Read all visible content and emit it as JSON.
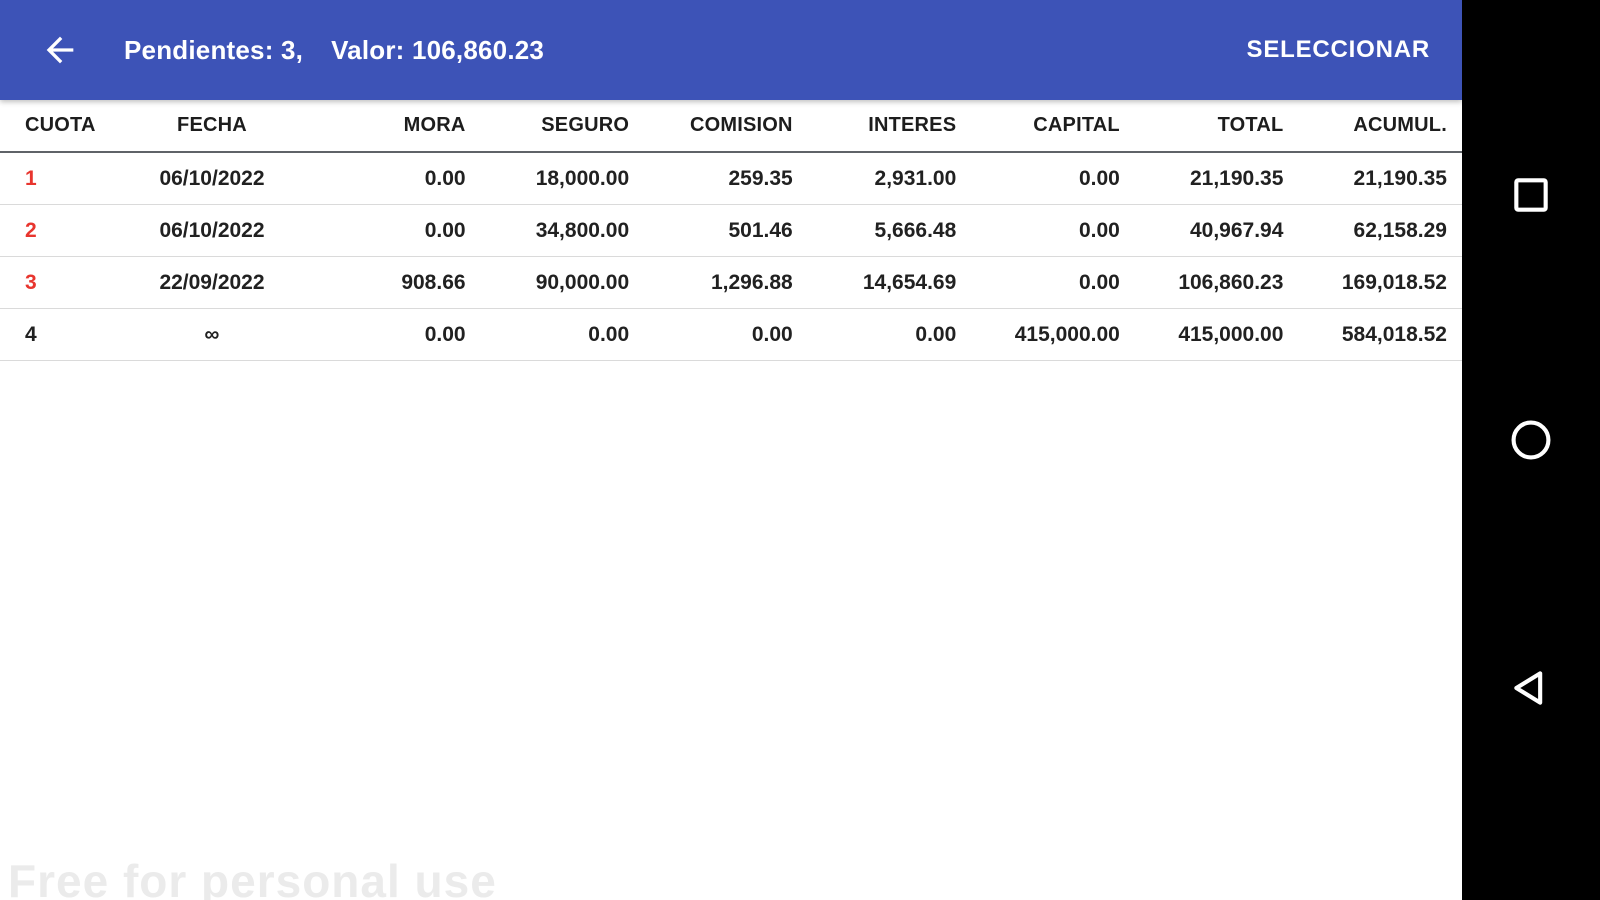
{
  "app_bar": {
    "background_color": "#3d53b7",
    "back_icon": "arrow-left",
    "title_left": "Pendientes: 3,",
    "title_right": "Valor: 106,860.23",
    "pendientes_count": "3",
    "valor": "106,860.23",
    "action_label": "SELECCIONAR"
  },
  "table": {
    "columns": [
      "CUOTA",
      "FECHA",
      "MORA",
      "SEGURO",
      "COMISION",
      "INTERES",
      "CAPITAL",
      "TOTAL",
      "ACUMUL."
    ],
    "cuota_red_color": "#e8352e",
    "rows": [
      {
        "cells": [
          "1",
          "06/10/2022",
          "0.00",
          "18,000.00",
          "259.35",
          "2,931.00",
          "0.00",
          "21,190.35",
          "21,190.35"
        ],
        "cuota_color": "red"
      },
      {
        "cells": [
          "2",
          "06/10/2022",
          "0.00",
          "34,800.00",
          "501.46",
          "5,666.48",
          "0.00",
          "40,967.94",
          "62,158.29"
        ],
        "cuota_color": "red"
      },
      {
        "cells": [
          "3",
          "22/09/2022",
          "908.66",
          "90,000.00",
          "1,296.88",
          "14,654.69",
          "0.00",
          "106,860.23",
          "169,018.52"
        ],
        "cuota_color": "red"
      },
      {
        "cells": [
          "4",
          "∞",
          "0.00",
          "0.00",
          "0.00",
          "0.00",
          "415,000.00",
          "415,000.00",
          "584,018.52"
        ],
        "cuota_color": "black"
      }
    ]
  },
  "nav_bar": {
    "icons": [
      "recents-square",
      "home-circle",
      "back-triangle"
    ]
  },
  "watermark": "Free for personal use"
}
